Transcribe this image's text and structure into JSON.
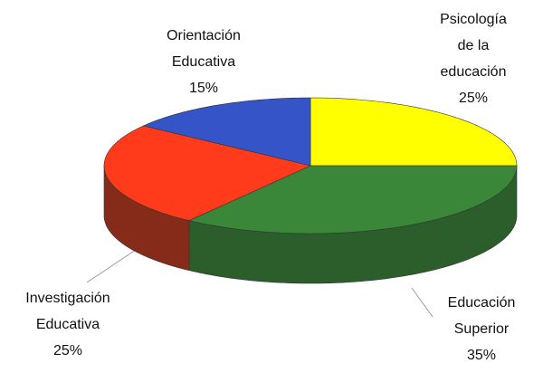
{
  "chart_data": {
    "type": "pie3d",
    "categories": [
      [
        "Psicología",
        "de la",
        "educación"
      ],
      [
        "Educación",
        "Superior"
      ],
      [
        "Investigación",
        "Educativa"
      ],
      [
        "Orientación",
        "Educativa"
      ]
    ],
    "values": [
      25,
      35,
      25,
      15
    ],
    "value_labels": [
      "25%",
      "35%",
      "25%",
      "15%"
    ],
    "colors": [
      "#ffff00",
      "#3a873a",
      "#ff3b1c",
      "#3454c8"
    ],
    "side_colors": [
      "#b3b300",
      "#2b5e2b",
      "#862b1a",
      "#223a8a"
    ]
  }
}
